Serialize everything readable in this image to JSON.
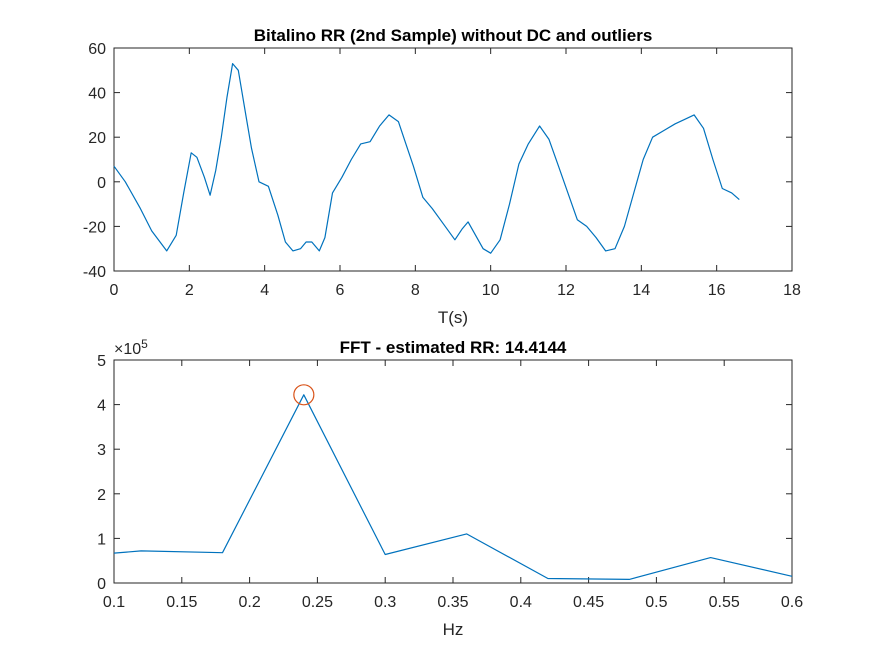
{
  "chart_data": [
    {
      "type": "line",
      "title": "Bitalino RR (2nd Sample) without DC and outliers",
      "xlabel": "T(s)",
      "ylabel": "",
      "xlim": [
        0,
        18
      ],
      "ylim": [
        -40,
        60
      ],
      "xticks": [
        0,
        2,
        4,
        6,
        8,
        10,
        12,
        14,
        16,
        18
      ],
      "yticks": [
        -40,
        -20,
        0,
        20,
        40,
        60
      ],
      "grid": false,
      "line_color": "#0072bd",
      "series": [
        {
          "x": [
            0,
            0.3,
            0.7,
            1.0,
            1.4,
            1.65,
            1.85,
            2.05,
            2.2,
            2.4,
            2.55,
            2.7,
            2.85,
            3.0,
            3.15,
            3.3,
            3.5,
            3.65,
            3.85,
            4.1,
            4.35,
            4.55,
            4.75,
            4.95,
            5.1,
            5.25,
            5.45,
            5.6,
            5.8,
            6.05,
            6.3,
            6.55,
            6.8,
            7.05,
            7.3,
            7.55,
            7.75,
            7.95,
            8.2,
            8.45,
            8.75,
            9.05,
            9.25,
            9.4,
            9.6,
            9.8,
            10.0,
            10.25,
            10.5,
            10.75,
            11.0,
            11.3,
            11.55,
            11.8,
            12.05,
            12.3,
            12.55,
            12.8,
            13.05,
            13.3,
            13.55,
            13.8,
            14.05,
            14.3,
            14.6,
            14.9,
            15.15,
            15.4,
            15.65,
            15.9,
            16.15,
            16.4,
            16.6
          ],
          "y": [
            7,
            0,
            -12,
            -22,
            -31,
            -24,
            -5,
            13,
            11,
            2,
            -6,
            5,
            20,
            38,
            53,
            50,
            30,
            15,
            0,
            -2,
            -15,
            -27,
            -31,
            -30,
            -27,
            -27,
            -31,
            -25,
            -5,
            2,
            10,
            17,
            18,
            25,
            30,
            27,
            17,
            7,
            -7,
            -12,
            -19,
            -26,
            -21,
            -18,
            -24,
            -30,
            -32,
            -26,
            -10,
            8,
            17,
            25,
            19,
            7,
            -5,
            -17,
            -20,
            -25,
            -31,
            -30,
            -20,
            -5,
            10,
            20,
            23,
            26,
            28,
            30,
            24,
            10,
            -3,
            -5,
            -8
          ]
        }
      ]
    },
    {
      "type": "line",
      "title": "FFT - estimated RR: 14.4144",
      "xlabel": "Hz",
      "ylabel": "",
      "xlim": [
        0.1,
        0.6
      ],
      "ylim": [
        0,
        5
      ],
      "y_multiplier": "×10",
      "y_multiplier_exponent": "5",
      "xticks": [
        0.1,
        0.15,
        0.2,
        0.25,
        0.3,
        0.35,
        0.4,
        0.45,
        0.5,
        0.55,
        0.6
      ],
      "xtick_labels": [
        "0.1",
        "0.15",
        "0.2",
        "0.25",
        "0.3",
        "0.35",
        "0.4",
        "0.45",
        "0.5",
        "0.55",
        "0.6"
      ],
      "yticks": [
        0,
        1,
        2,
        3,
        4,
        5
      ],
      "grid": false,
      "line_color": "#0072bd",
      "marker_color": "#d95319",
      "series": [
        {
          "x": [
            0.1,
            0.12,
            0.18,
            0.24,
            0.3,
            0.36,
            0.42,
            0.48,
            0.54,
            0.6
          ],
          "y": [
            0.67,
            0.72,
            0.68,
            4.22,
            0.64,
            1.1,
            0.1,
            0.08,
            0.57,
            0.15
          ]
        }
      ],
      "peak_marker": {
        "x": 0.24,
        "y": 4.22
      }
    }
  ]
}
